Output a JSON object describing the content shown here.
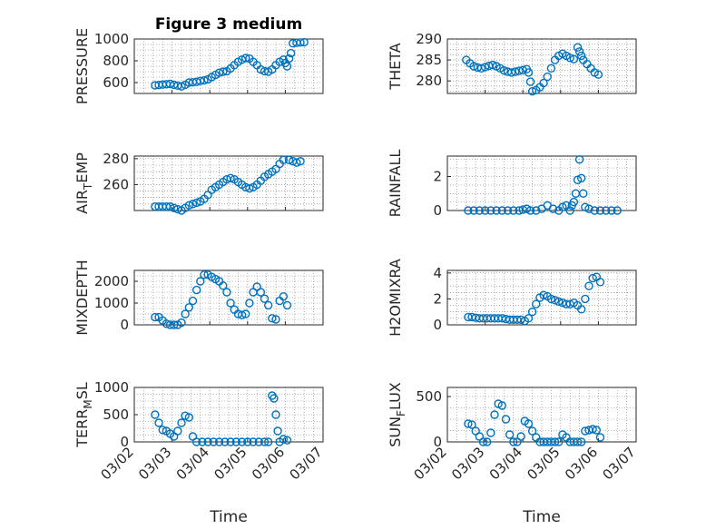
{
  "title": "Figure 3 medium",
  "xlabel": "Time",
  "x_ticks": [
    "03/02",
    "03/03",
    "03/04",
    "03/05",
    "03/06",
    "03/07"
  ],
  "series_color": "#0072BD",
  "chart_data": [
    {
      "type": "scatter",
      "title": "Figure 3 medium",
      "ylabel": "PRESSURE",
      "ylim": [
        500,
        1000
      ],
      "yticks": [
        600,
        800,
        1000
      ],
      "xlim": [
        0,
        5
      ],
      "grid": true,
      "points": [
        [
          0.55,
          575
        ],
        [
          0.65,
          578
        ],
        [
          0.75,
          582
        ],
        [
          0.85,
          585
        ],
        [
          0.95,
          588
        ],
        [
          1.05,
          580
        ],
        [
          1.15,
          572
        ],
        [
          1.25,
          565
        ],
        [
          1.35,
          580
        ],
        [
          1.45,
          600
        ],
        [
          1.55,
          603
        ],
        [
          1.65,
          607
        ],
        [
          1.75,
          615
        ],
        [
          1.85,
          620
        ],
        [
          1.95,
          630
        ],
        [
          2.05,
          650
        ],
        [
          2.15,
          670
        ],
        [
          2.25,
          690
        ],
        [
          2.35,
          700
        ],
        [
          2.45,
          705
        ],
        [
          2.55,
          730
        ],
        [
          2.65,
          760
        ],
        [
          2.75,
          790
        ],
        [
          2.85,
          810
        ],
        [
          2.95,
          825
        ],
        [
          3.05,
          820
        ],
        [
          3.15,
          790
        ],
        [
          3.25,
          760
        ],
        [
          3.35,
          720
        ],
        [
          3.45,
          705
        ],
        [
          3.55,
          700
        ],
        [
          3.65,
          720
        ],
        [
          3.75,
          760
        ],
        [
          3.85,
          790
        ],
        [
          3.95,
          810
        ],
        [
          4.0,
          780
        ],
        [
          4.05,
          750
        ],
        [
          4.1,
          820
        ],
        [
          4.15,
          870
        ],
        [
          4.2,
          960
        ],
        [
          4.3,
          965
        ],
        [
          4.4,
          968
        ],
        [
          4.5,
          970
        ]
      ]
    },
    {
      "type": "scatter",
      "ylabel": "THETA",
      "ylim": [
        277,
        290
      ],
      "yticks": [
        280,
        285,
        290
      ],
      "xlim": [
        0,
        5
      ],
      "grid": true,
      "points": [
        [
          0.5,
          285
        ],
        [
          0.6,
          284.2
        ],
        [
          0.7,
          283.5
        ],
        [
          0.8,
          283.2
        ],
        [
          0.9,
          283.0
        ],
        [
          1.0,
          283.3
        ],
        [
          1.1,
          283.6
        ],
        [
          1.2,
          283.8
        ],
        [
          1.3,
          283.5
        ],
        [
          1.4,
          283.0
        ],
        [
          1.5,
          282.5
        ],
        [
          1.6,
          282.2
        ],
        [
          1.7,
          282.0
        ],
        [
          1.8,
          282.2
        ],
        [
          1.9,
          282.4
        ],
        [
          2.0,
          282.6
        ],
        [
          2.1,
          282.8
        ],
        [
          2.15,
          282.0
        ],
        [
          2.2,
          279.8
        ],
        [
          2.25,
          277.5
        ],
        [
          2.35,
          277.8
        ],
        [
          2.45,
          278.5
        ],
        [
          2.55,
          279.5
        ],
        [
          2.65,
          281.0
        ],
        [
          2.75,
          283.0
        ],
        [
          2.85,
          285.0
        ],
        [
          2.95,
          286.0
        ],
        [
          3.05,
          286.5
        ],
        [
          3.15,
          286.0
        ],
        [
          3.25,
          285.5
        ],
        [
          3.35,
          285.2
        ],
        [
          3.45,
          288.0
        ],
        [
          3.5,
          287.0
        ],
        [
          3.55,
          286.0
        ],
        [
          3.6,
          285.0
        ],
        [
          3.7,
          284.0
        ],
        [
          3.8,
          283.0
        ],
        [
          3.9,
          282.0
        ],
        [
          4.0,
          281.5
        ]
      ]
    },
    {
      "type": "scatter",
      "ylabel": "AIR_TEMP",
      "ylim": [
        240,
        282
      ],
      "yticks": [
        260,
        280
      ],
      "xlim": [
        0,
        5
      ],
      "grid": true,
      "points": [
        [
          0.55,
          243
        ],
        [
          0.65,
          243
        ],
        [
          0.75,
          243
        ],
        [
          0.85,
          243
        ],
        [
          0.95,
          243
        ],
        [
          1.05,
          242
        ],
        [
          1.15,
          241
        ],
        [
          1.25,
          240
        ],
        [
          1.35,
          242
        ],
        [
          1.45,
          244
        ],
        [
          1.55,
          245
        ],
        [
          1.65,
          246
        ],
        [
          1.75,
          247
        ],
        [
          1.85,
          249
        ],
        [
          1.95,
          252
        ],
        [
          2.05,
          256
        ],
        [
          2.15,
          258
        ],
        [
          2.25,
          260
        ],
        [
          2.35,
          262
        ],
        [
          2.45,
          264
        ],
        [
          2.55,
          265
        ],
        [
          2.65,
          264
        ],
        [
          2.75,
          262
        ],
        [
          2.85,
          260
        ],
        [
          2.95,
          258
        ],
        [
          3.05,
          257
        ],
        [
          3.15,
          258
        ],
        [
          3.25,
          260
        ],
        [
          3.35,
          263
        ],
        [
          3.45,
          266
        ],
        [
          3.55,
          268
        ],
        [
          3.65,
          270
        ],
        [
          3.75,
          272
        ],
        [
          3.85,
          276
        ],
        [
          3.95,
          279
        ],
        [
          4.1,
          279
        ],
        [
          4.2,
          278
        ],
        [
          4.3,
          277
        ],
        [
          4.4,
          278
        ]
      ]
    },
    {
      "type": "scatter",
      "ylabel": "RAINFALL",
      "ylim": [
        0,
        3.2
      ],
      "yticks": [
        0,
        2
      ],
      "xlim": [
        0,
        5
      ],
      "grid": true,
      "points": [
        [
          0.55,
          0
        ],
        [
          0.7,
          0
        ],
        [
          0.85,
          0
        ],
        [
          1.0,
          0
        ],
        [
          1.15,
          0
        ],
        [
          1.3,
          0
        ],
        [
          1.45,
          0
        ],
        [
          1.6,
          0
        ],
        [
          1.75,
          0
        ],
        [
          1.9,
          0
        ],
        [
          2.0,
          0.05
        ],
        [
          2.1,
          0.1
        ],
        [
          2.2,
          0
        ],
        [
          2.35,
          0
        ],
        [
          2.5,
          0.1
        ],
        [
          2.65,
          0.3
        ],
        [
          2.8,
          0.1
        ],
        [
          2.95,
          0
        ],
        [
          3.05,
          0.2
        ],
        [
          3.15,
          0.3
        ],
        [
          3.25,
          0
        ],
        [
          3.3,
          0.3
        ],
        [
          3.35,
          0.5
        ],
        [
          3.4,
          1.0
        ],
        [
          3.45,
          1.8
        ],
        [
          3.5,
          3.0
        ],
        [
          3.55,
          1.9
        ],
        [
          3.6,
          1.0
        ],
        [
          3.65,
          0.2
        ],
        [
          3.75,
          0.1
        ],
        [
          3.9,
          0
        ],
        [
          4.05,
          0
        ],
        [
          4.2,
          0
        ],
        [
          4.35,
          0
        ],
        [
          4.5,
          0
        ]
      ]
    },
    {
      "type": "scatter",
      "ylabel": "MIXDEPTH",
      "ylim": [
        0,
        2500
      ],
      "yticks": [
        0,
        1000,
        2000
      ],
      "xlim": [
        0,
        5
      ],
      "grid": true,
      "points": [
        [
          0.55,
          350
        ],
        [
          0.65,
          350
        ],
        [
          0.75,
          200
        ],
        [
          0.85,
          50
        ],
        [
          0.95,
          0
        ],
        [
          1.05,
          0
        ],
        [
          1.15,
          0
        ],
        [
          1.25,
          100
        ],
        [
          1.35,
          500
        ],
        [
          1.45,
          800
        ],
        [
          1.55,
          1100
        ],
        [
          1.65,
          1600
        ],
        [
          1.75,
          2000
        ],
        [
          1.85,
          2300
        ],
        [
          1.95,
          2300
        ],
        [
          2.05,
          2200
        ],
        [
          2.15,
          2100
        ],
        [
          2.25,
          2000
        ],
        [
          2.35,
          1800
        ],
        [
          2.45,
          1500
        ],
        [
          2.55,
          1000
        ],
        [
          2.65,
          700
        ],
        [
          2.75,
          500
        ],
        [
          2.85,
          450
        ],
        [
          2.95,
          500
        ],
        [
          3.05,
          1000
        ],
        [
          3.15,
          1500
        ],
        [
          3.25,
          1750
        ],
        [
          3.35,
          1500
        ],
        [
          3.45,
          1200
        ],
        [
          3.55,
          900
        ],
        [
          3.65,
          300
        ],
        [
          3.75,
          250
        ],
        [
          3.85,
          1100
        ],
        [
          3.95,
          1300
        ],
        [
          4.05,
          900
        ]
      ]
    },
    {
      "type": "scatter",
      "ylabel": "H2OMIXRA",
      "ylim": [
        0,
        4.2
      ],
      "yticks": [
        0,
        2,
        4
      ],
      "xlim": [
        0,
        5
      ],
      "grid": true,
      "points": [
        [
          0.55,
          0.6
        ],
        [
          0.65,
          0.6
        ],
        [
          0.75,
          0.55
        ],
        [
          0.85,
          0.5
        ],
        [
          0.95,
          0.5
        ],
        [
          1.05,
          0.5
        ],
        [
          1.15,
          0.5
        ],
        [
          1.25,
          0.5
        ],
        [
          1.35,
          0.5
        ],
        [
          1.45,
          0.5
        ],
        [
          1.55,
          0.45
        ],
        [
          1.65,
          0.4
        ],
        [
          1.75,
          0.4
        ],
        [
          1.85,
          0.4
        ],
        [
          1.95,
          0.4
        ],
        [
          2.05,
          0.3
        ],
        [
          2.15,
          0.5
        ],
        [
          2.25,
          1.0
        ],
        [
          2.35,
          1.6
        ],
        [
          2.45,
          2.1
        ],
        [
          2.55,
          2.3
        ],
        [
          2.65,
          2.2
        ],
        [
          2.75,
          2.0
        ],
        [
          2.85,
          1.9
        ],
        [
          2.95,
          1.8
        ],
        [
          3.05,
          1.7
        ],
        [
          3.15,
          1.6
        ],
        [
          3.25,
          1.6
        ],
        [
          3.35,
          1.7
        ],
        [
          3.45,
          1.5
        ],
        [
          3.55,
          1.2
        ],
        [
          3.65,
          2.0
        ],
        [
          3.75,
          3.0
        ],
        [
          3.85,
          3.6
        ],
        [
          3.95,
          3.7
        ],
        [
          4.05,
          3.3
        ]
      ]
    },
    {
      "type": "scatter",
      "ylabel": "TERR_MSL",
      "ylim": [
        0,
        1000
      ],
      "yticks": [
        0,
        500,
        1000
      ],
      "xlim": [
        0,
        5
      ],
      "grid": true,
      "points": [
        [
          0.55,
          500
        ],
        [
          0.65,
          350
        ],
        [
          0.75,
          220
        ],
        [
          0.85,
          200
        ],
        [
          0.95,
          150
        ],
        [
          1.05,
          100
        ],
        [
          1.15,
          200
        ],
        [
          1.25,
          350
        ],
        [
          1.35,
          480
        ],
        [
          1.45,
          450
        ],
        [
          1.55,
          100
        ],
        [
          1.65,
          0
        ],
        [
          1.8,
          0
        ],
        [
          1.95,
          0
        ],
        [
          2.1,
          0
        ],
        [
          2.25,
          0
        ],
        [
          2.4,
          0
        ],
        [
          2.55,
          0
        ],
        [
          2.7,
          0
        ],
        [
          2.85,
          0
        ],
        [
          3.0,
          0
        ],
        [
          3.15,
          0
        ],
        [
          3.3,
          0
        ],
        [
          3.45,
          0
        ],
        [
          3.55,
          0
        ],
        [
          3.65,
          850
        ],
        [
          3.7,
          800
        ],
        [
          3.75,
          500
        ],
        [
          3.8,
          200
        ],
        [
          3.85,
          0
        ],
        [
          3.95,
          50
        ],
        [
          4.05,
          30
        ]
      ]
    },
    {
      "type": "scatter",
      "ylabel": "SUN_FLUX",
      "ylim": [
        0,
        600
      ],
      "yticks": [
        0,
        500
      ],
      "xlim": [
        0,
        5
      ],
      "grid": true,
      "points": [
        [
          0.55,
          200
        ],
        [
          0.65,
          190
        ],
        [
          0.75,
          120
        ],
        [
          0.85,
          60
        ],
        [
          0.95,
          0
        ],
        [
          1.05,
          0
        ],
        [
          1.15,
          100
        ],
        [
          1.25,
          300
        ],
        [
          1.35,
          420
        ],
        [
          1.45,
          400
        ],
        [
          1.55,
          250
        ],
        [
          1.65,
          80
        ],
        [
          1.75,
          0
        ],
        [
          1.85,
          0
        ],
        [
          1.95,
          60
        ],
        [
          2.05,
          230
        ],
        [
          2.15,
          200
        ],
        [
          2.25,
          120
        ],
        [
          2.35,
          50
        ],
        [
          2.45,
          0
        ],
        [
          2.55,
          0
        ],
        [
          2.65,
          0
        ],
        [
          2.75,
          0
        ],
        [
          2.85,
          0
        ],
        [
          2.95,
          0
        ],
        [
          3.05,
          80
        ],
        [
          3.15,
          50
        ],
        [
          3.25,
          0
        ],
        [
          3.35,
          0
        ],
        [
          3.45,
          0
        ],
        [
          3.55,
          0
        ],
        [
          3.65,
          120
        ],
        [
          3.75,
          130
        ],
        [
          3.85,
          140
        ],
        [
          3.95,
          130
        ],
        [
          4.05,
          50
        ]
      ]
    }
  ]
}
